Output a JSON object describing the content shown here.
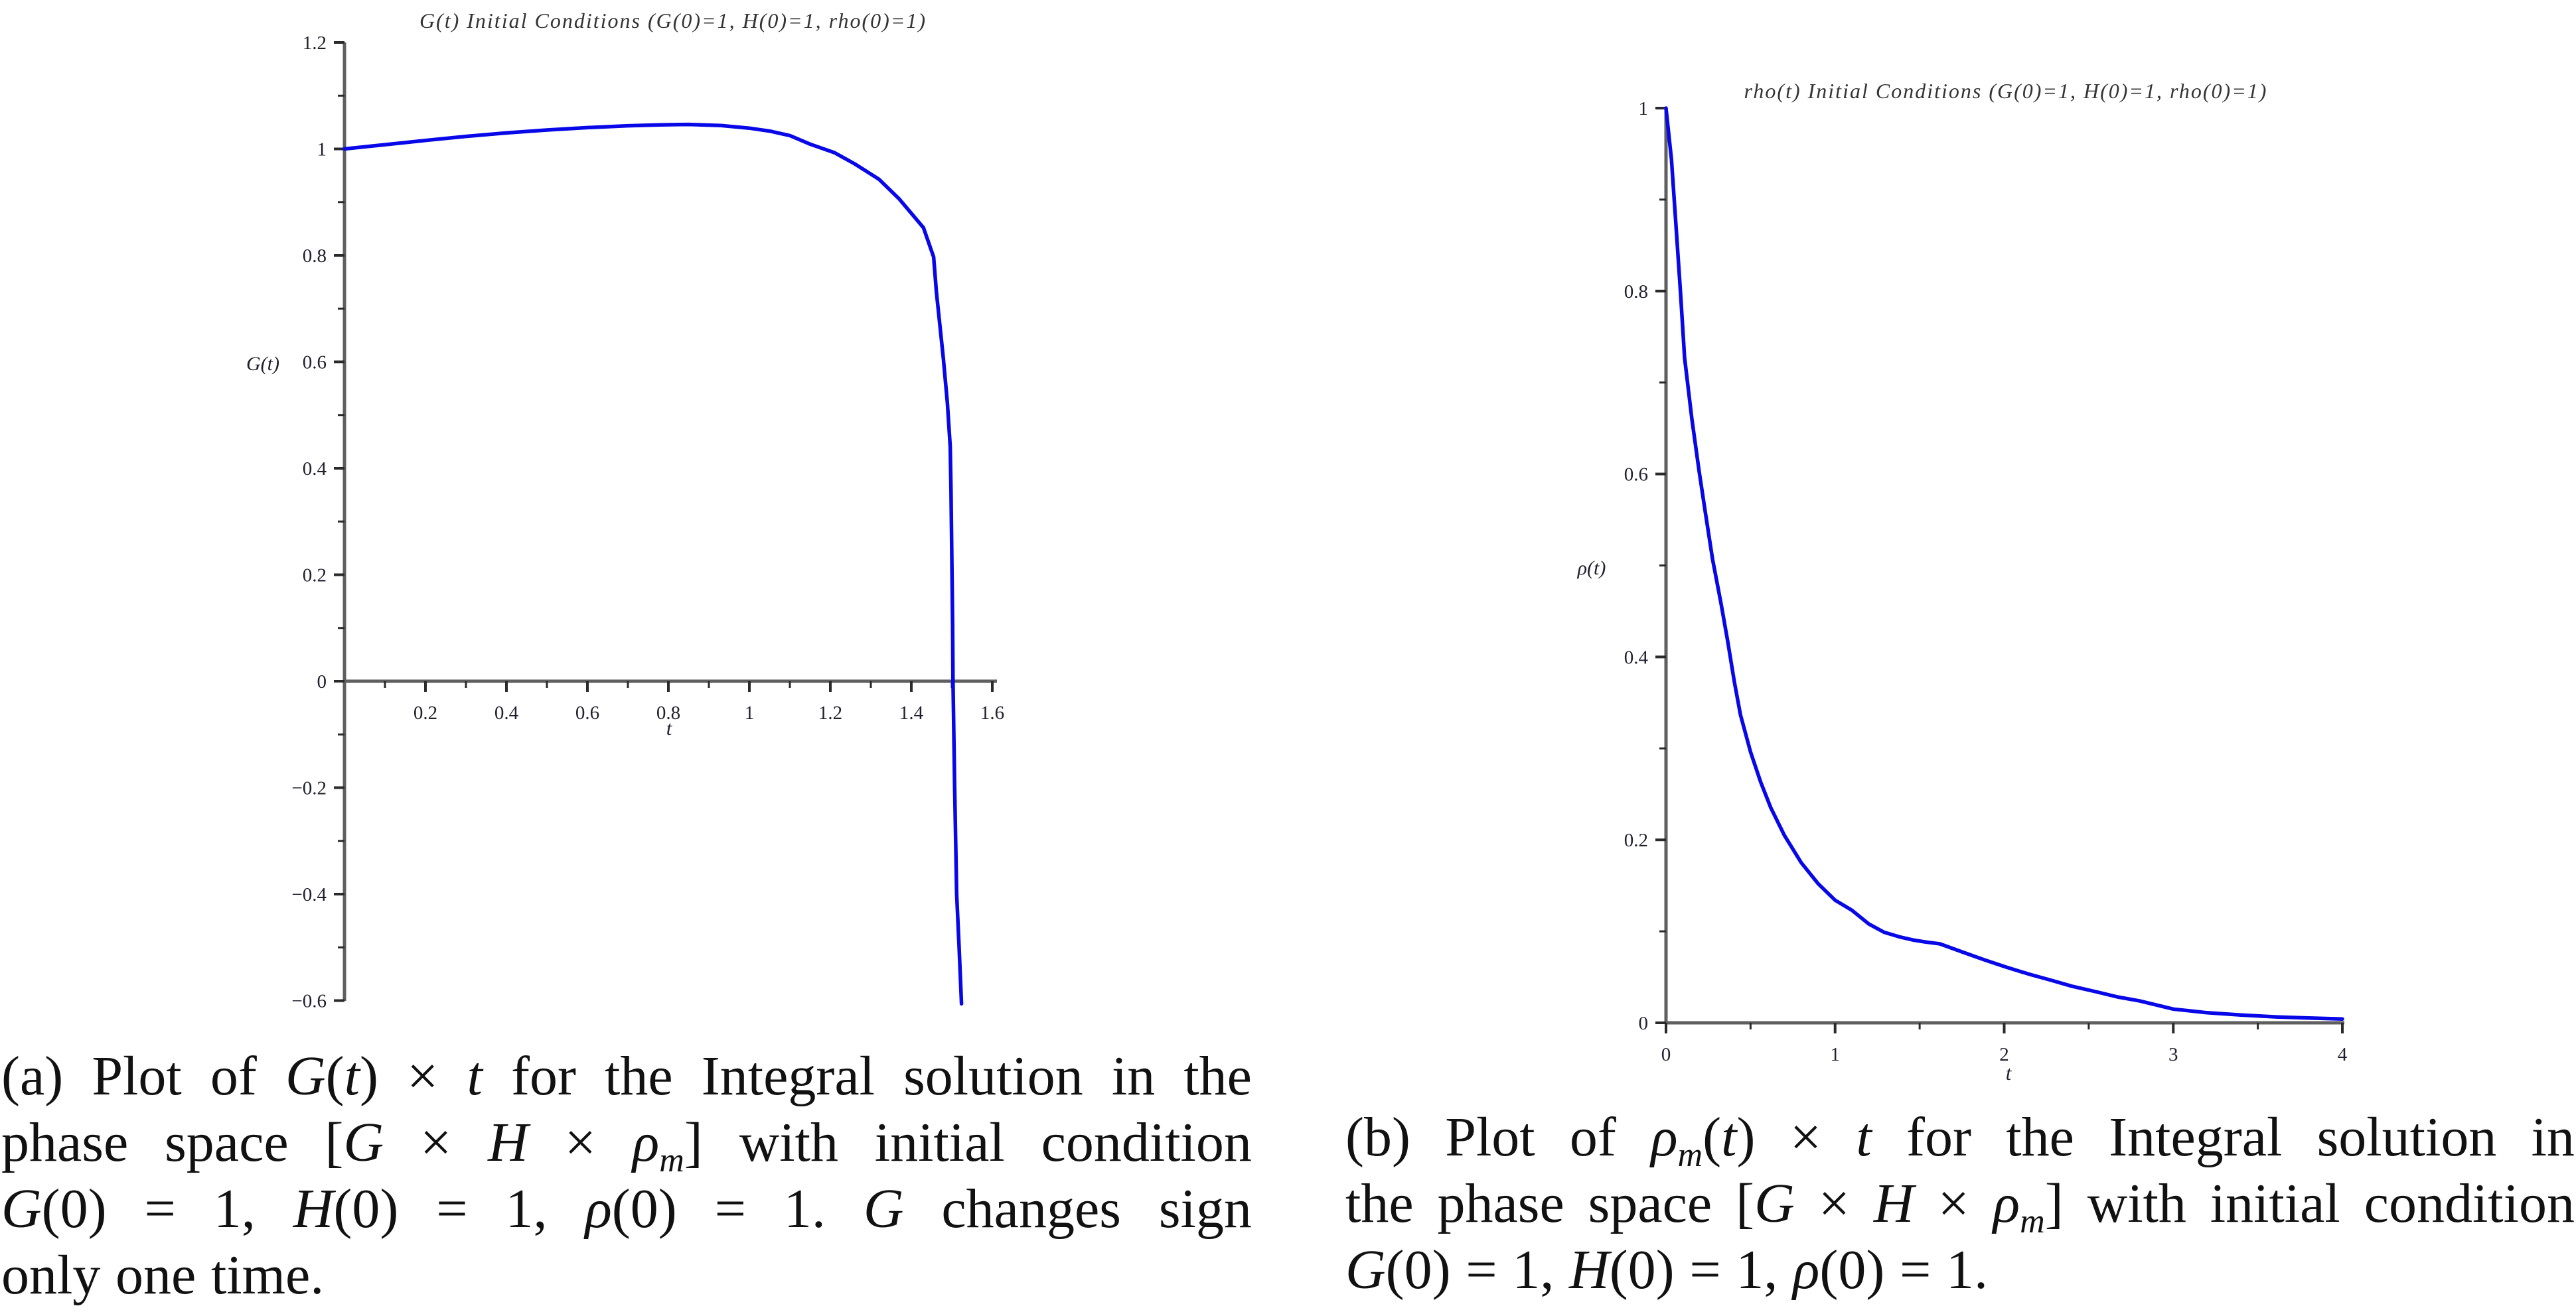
{
  "figure": {
    "background": "#ffffff"
  },
  "chart_data": [
    {
      "id": "g-plot",
      "type": "line",
      "title": "G(t) Initial Conditions (G(0)=1, H(0)=1, rho(0)=1)",
      "xlabel": "t",
      "ylabel": "G(t)",
      "xlim": [
        0,
        1.625
      ],
      "ylim": [
        -0.6,
        1.2
      ],
      "x_major_ticks": [
        {
          "v": 0.2,
          "t": "0.2"
        },
        {
          "v": 0.4,
          "t": "0.4"
        },
        {
          "v": 0.6,
          "t": "0.6"
        },
        {
          "v": 0.8,
          "t": "0.8"
        },
        {
          "v": 1,
          "t": "1"
        },
        {
          "v": 1.2,
          "t": "1.2"
        },
        {
          "v": 1.4,
          "t": "1.4"
        },
        {
          "v": 1.6,
          "t": "1.6"
        }
      ],
      "x_minor_ticks": [
        0.1,
        0.3,
        0.5,
        0.7,
        0.9,
        1.1,
        1.3,
        1.5
      ],
      "y_major_ticks": [
        {
          "v": 1.2,
          "t": "1.2"
        },
        {
          "v": 1,
          "t": "1"
        },
        {
          "v": 0.8,
          "t": "0.8"
        },
        {
          "v": 0.6,
          "t": "0.6"
        },
        {
          "v": 0.4,
          "t": "0.4"
        },
        {
          "v": 0.2,
          "t": "0.2"
        },
        {
          "v": 0,
          "t": "0"
        },
        {
          "v": -0.2,
          "t": "−0.2"
        },
        {
          "v": -0.4,
          "t": "−0.4"
        },
        {
          "v": -0.6,
          "t": "−0.6"
        }
      ],
      "y_minor_ticks": [
        1.1,
        0.9,
        0.7,
        0.5,
        0.3,
        0.1,
        -0.1,
        -0.3,
        -0.5
      ],
      "line_color": "#0707e8",
      "axis_color": "#5f5f5f",
      "tick_color": "#2a2a2a",
      "label_color": "#1f1f2e",
      "title_color": "#343434",
      "points": [
        [
          0,
          1.0
        ],
        [
          0.1,
          1.008
        ],
        [
          0.2,
          1.016
        ],
        [
          0.3,
          1.0235
        ],
        [
          0.4,
          1.03
        ],
        [
          0.5,
          1.0355
        ],
        [
          0.6,
          1.04
        ],
        [
          0.7,
          1.0435
        ],
        [
          0.78,
          1.0452
        ],
        [
          0.85,
          1.046
        ],
        [
          0.93,
          1.044
        ],
        [
          1.0,
          1.039
        ],
        [
          1.05,
          1.0335
        ],
        [
          1.1,
          1.025
        ],
        [
          1.15,
          1.009
        ],
        [
          1.21,
          0.993
        ],
        [
          1.26,
          0.972
        ],
        [
          1.32,
          0.943
        ],
        [
          1.37,
          0.906
        ],
        [
          1.43,
          0.852
        ],
        [
          1.455,
          0.797
        ],
        [
          1.462,
          0.731
        ],
        [
          1.479,
          0.607
        ],
        [
          1.489,
          0.523
        ],
        [
          1.496,
          0.441
        ],
        [
          1.498,
          0.358
        ],
        [
          1.5,
          0.233
        ],
        [
          1.502,
          0.108
        ],
        [
          1.503,
          0.0
        ],
        [
          1.507,
          -0.2
        ],
        [
          1.512,
          -0.4
        ],
        [
          1.518,
          -0.5
        ],
        [
          1.524,
          -0.606
        ]
      ]
    },
    {
      "id": "rho-plot",
      "type": "line",
      "title": "rho(t) Initial Conditions (G(0)=1, H(0)=1, rho(0)=1)",
      "xlabel": "t",
      "ylabel": "ρ(t)",
      "xlim": [
        0,
        4
      ],
      "ylim": [
        0,
        1
      ],
      "x_major_ticks": [
        {
          "v": 0,
          "t": "0"
        },
        {
          "v": 1,
          "t": "1"
        },
        {
          "v": 2,
          "t": "2"
        },
        {
          "v": 3,
          "t": "3"
        },
        {
          "v": 4,
          "t": "4"
        }
      ],
      "x_minor_ticks": [
        0.5,
        1.5,
        2.5,
        3.5
      ],
      "y_major_ticks": [
        {
          "v": 1,
          "t": "1"
        },
        {
          "v": 0.8,
          "t": "0.8"
        },
        {
          "v": 0.6,
          "t": "0.6"
        },
        {
          "v": 0.4,
          "t": "0.4"
        },
        {
          "v": 0.2,
          "t": "0.2"
        },
        {
          "v": 0,
          "t": "0"
        }
      ],
      "y_minor_ticks": [
        0.9,
        0.7,
        0.5,
        0.3,
        0.1
      ],
      "line_color": "#0707e8",
      "axis_color": "#5f5f5f",
      "tick_color": "#2a2a2a",
      "label_color": "#1f1f2e",
      "title_color": "#343434",
      "points": [
        [
          0,
          1.0
        ],
        [
          0.032,
          0.944
        ],
        [
          0.059,
          0.872
        ],
        [
          0.085,
          0.8
        ],
        [
          0.11,
          0.727
        ],
        [
          0.153,
          0.66
        ],
        [
          0.196,
          0.603
        ],
        [
          0.235,
          0.555
        ],
        [
          0.275,
          0.507
        ],
        [
          0.326,
          0.458
        ],
        [
          0.365,
          0.417
        ],
        [
          0.404,
          0.373
        ],
        [
          0.44,
          0.337
        ],
        [
          0.5,
          0.296
        ],
        [
          0.56,
          0.263
        ],
        [
          0.62,
          0.235
        ],
        [
          0.7,
          0.205
        ],
        [
          0.8,
          0.175
        ],
        [
          0.9,
          0.152
        ],
        [
          1.0,
          0.134
        ],
        [
          1.1,
          0.123
        ],
        [
          1.2,
          0.108
        ],
        [
          1.29,
          0.099
        ],
        [
          1.38,
          0.094
        ],
        [
          1.46,
          0.0906
        ],
        [
          1.53,
          0.0885
        ],
        [
          1.62,
          0.0863
        ],
        [
          1.75,
          0.0776
        ],
        [
          1.88,
          0.069
        ],
        [
          2.01,
          0.061
        ],
        [
          2.15,
          0.053
        ],
        [
          2.28,
          0.0464
        ],
        [
          2.4,
          0.04
        ],
        [
          2.54,
          0.0341
        ],
        [
          2.67,
          0.0283
        ],
        [
          2.8,
          0.024
        ],
        [
          3.0,
          0.015
        ],
        [
          3.2,
          0.011
        ],
        [
          3.4,
          0.0085
        ],
        [
          3.6,
          0.0065
        ],
        [
          3.8,
          0.0052
        ],
        [
          4.0,
          0.0042
        ]
      ]
    }
  ],
  "captions": {
    "a": {
      "lines": [
        {
          "justify": true,
          "words": [
            [
              [
                "(a)",
                "r"
              ]
            ],
            [
              [
                "Plot",
                "r"
              ]
            ],
            [
              [
                "of",
                "r"
              ]
            ],
            [
              [
                "𝒢",
                "c"
              ],
              [
                "(",
                "r"
              ],
              [
                "t",
                "i"
              ],
              [
                ")",
                "r"
              ]
            ],
            [
              [
                "×",
                "r"
              ]
            ],
            [
              [
                "t",
                "i"
              ]
            ],
            [
              [
                "for",
                "r"
              ]
            ],
            [
              [
                "the",
                "r"
              ]
            ],
            [
              [
                "Integral",
                "r"
              ]
            ],
            [
              [
                "solution",
                "r"
              ]
            ],
            [
              [
                "in",
                "r"
              ]
            ],
            [
              [
                "the",
                "r"
              ]
            ]
          ]
        },
        {
          "justify": true,
          "words": [
            [
              [
                "phase",
                "r"
              ]
            ],
            [
              [
                "space",
                "r"
              ]
            ],
            [
              [
                "[",
                "r"
              ],
              [
                "𝒢",
                "c"
              ]
            ],
            [
              [
                "×",
                "r"
              ]
            ],
            [
              [
                "H",
                "i"
              ]
            ],
            [
              [
                "×",
                "r"
              ]
            ],
            [
              [
                "ρ",
                "i"
              ],
              [
                "m",
                "s"
              ],
              [
                "]",
                "r"
              ]
            ],
            [
              [
                "with",
                "r"
              ]
            ],
            [
              [
                "initial",
                "r"
              ]
            ],
            [
              [
                "condition",
                "r"
              ]
            ]
          ]
        },
        {
          "justify": true,
          "words": [
            [
              [
                "𝒢",
                "c"
              ],
              [
                "(0)",
                "r"
              ]
            ],
            [
              [
                "=",
                "r"
              ]
            ],
            [
              [
                "1,",
                "r"
              ]
            ],
            [
              [
                "H",
                "i"
              ],
              [
                "(0)",
                "r"
              ]
            ],
            [
              [
                "=",
                "r"
              ]
            ],
            [
              [
                "1,",
                "r"
              ]
            ],
            [
              [
                "ρ",
                "i"
              ],
              [
                "(0)",
                "r"
              ]
            ],
            [
              [
                "=",
                "r"
              ]
            ],
            [
              [
                "1.",
                "r"
              ]
            ],
            [
              [
                "𝒢",
                "c"
              ]
            ],
            [
              [
                "changes",
                "r"
              ]
            ],
            [
              [
                "sign",
                "r"
              ]
            ]
          ]
        },
        {
          "justify": false,
          "words": [
            [
              [
                "only",
                "r"
              ]
            ],
            [
              [
                "one",
                "r"
              ]
            ],
            [
              [
                "time.",
                "r"
              ]
            ]
          ]
        }
      ]
    },
    "b": {
      "lines": [
        {
          "justify": true,
          "words": [
            [
              [
                "(b)",
                "r"
              ]
            ],
            [
              [
                "Plot",
                "r"
              ]
            ],
            [
              [
                "of",
                "r"
              ]
            ],
            [
              [
                "ρ",
                "i"
              ],
              [
                "m",
                "s"
              ],
              [
                "(",
                "r"
              ],
              [
                "t",
                "i"
              ],
              [
                ")",
                "r"
              ]
            ],
            [
              [
                "×",
                "r"
              ]
            ],
            [
              [
                "t",
                "i"
              ]
            ],
            [
              [
                "for",
                "r"
              ]
            ],
            [
              [
                "the",
                "r"
              ]
            ],
            [
              [
                "Integral",
                "r"
              ]
            ],
            [
              [
                "solution",
                "r"
              ]
            ],
            [
              [
                "in",
                "r"
              ]
            ]
          ]
        },
        {
          "justify": true,
          "words": [
            [
              [
                "the",
                "r"
              ]
            ],
            [
              [
                "phase",
                "r"
              ]
            ],
            [
              [
                "space",
                "r"
              ]
            ],
            [
              [
                "[",
                "r"
              ],
              [
                "𝒢",
                "c"
              ]
            ],
            [
              [
                "×",
                "r"
              ]
            ],
            [
              [
                "H",
                "i"
              ]
            ],
            [
              [
                "×",
                "r"
              ]
            ],
            [
              [
                "ρ",
                "i"
              ],
              [
                "m",
                "s"
              ],
              [
                "]",
                "r"
              ]
            ],
            [
              [
                "with",
                "r"
              ]
            ],
            [
              [
                "initial",
                "r"
              ]
            ],
            [
              [
                "condition",
                "r"
              ]
            ]
          ]
        },
        {
          "justify": false,
          "words": [
            [
              [
                "𝒢",
                "c"
              ],
              [
                "(0)",
                "r"
              ]
            ],
            [
              [
                "=",
                "r"
              ]
            ],
            [
              [
                "1,",
                "r"
              ]
            ],
            [
              [
                "H",
                "i"
              ],
              [
                "(0)",
                "r"
              ]
            ],
            [
              [
                "=",
                "r"
              ]
            ],
            [
              [
                "1,",
                "r"
              ]
            ],
            [
              [
                "ρ",
                "i"
              ],
              [
                "(0)",
                "r"
              ]
            ],
            [
              [
                "=",
                "r"
              ]
            ],
            [
              [
                "1.",
                "r"
              ]
            ]
          ]
        }
      ]
    }
  }
}
